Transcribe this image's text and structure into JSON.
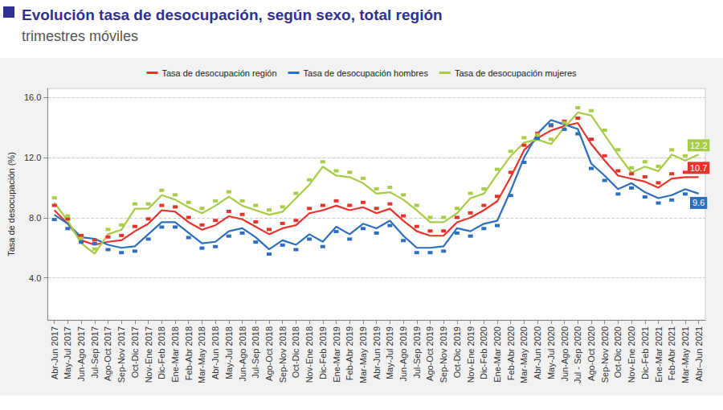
{
  "chart_data": {
    "type": "line",
    "title": "Evolución tasa de desocupación, según sexo, total región",
    "subtitle": "trimestres móviles",
    "y_label": "Tasa de desocupación (%)",
    "categories": [
      "Abr-Jun 2017",
      "May-Jul 2017",
      "Jun-Ago 2017",
      "Jul-Sep 2017",
      "Ago-Oct 2017",
      "Sep-Nov 2017",
      "Oct-Dic 2017",
      "Nov-Ene 2017",
      "Dic-Feb 2018",
      "Ene-Mar 2018",
      "Feb-Abr 2018",
      "Mar-May 2018",
      "Abr-Jun 2018",
      "May-Jul 2018",
      "Jun-Ago 2018",
      "Jul-Sep 2018",
      "Ago-Oct 2018",
      "Sep-Nov 2018",
      "Oct-Dic 2018",
      "Nov-Ene 2018",
      "Dic-Feb 2019",
      "Ene-Mar 2019",
      "Feb-Abr 2019",
      "Mar-May 2019",
      "Abr-Jun 2019",
      "May-Jul 2019",
      "Jun-Ago 2019",
      "Jul-Sep 2019",
      "Ago-Oct 2019",
      "Sep-Nov 2019",
      "Oct-Dic 2019",
      "Nov-Ene 2019",
      "Dic-Feb 2020",
      "Ene-Mar 2020",
      "Feb-Abr 2020",
      "Mar-May 2020",
      "Abr-Jun 2020",
      "May-Jul 2020",
      "Jun-Ago 2020",
      "Jul - Sep 2020",
      "Ago-Oct 2020",
      "Sep-Nov 2020",
      "Oct-Dic 2020",
      "Nov-Ene 2020",
      "Dic-Feb 2021",
      "Ene-Mar 2021",
      "Feb-Abr 2021",
      "Mar-May 2021",
      "Abr–Jun 2021"
    ],
    "series": [
      {
        "name": "Tasa de desocupación región",
        "color": "#e8332a",
        "values": [
          8.5,
          7.6,
          6.5,
          6.2,
          6.4,
          6.5,
          7.1,
          7.6,
          8.5,
          8.4,
          7.7,
          7.2,
          7.5,
          8.1,
          7.9,
          7.4,
          6.9,
          7.3,
          7.5,
          8.3,
          8.5,
          8.8,
          8.5,
          8.7,
          8.3,
          8.6,
          7.8,
          7.1,
          6.8,
          6.8,
          7.7,
          8.0,
          8.5,
          9.1,
          10.7,
          12.5,
          13.3,
          13.8,
          14.1,
          14.3,
          12.9,
          11.8,
          10.8,
          10.6,
          10.4,
          10.0,
          10.6,
          10.7,
          10.7
        ],
        "value_labels": [
          null,
          null,
          null,
          null,
          null,
          null,
          null,
          null,
          null,
          null,
          null,
          null,
          null,
          null,
          null,
          null,
          null,
          null,
          null,
          null,
          null,
          null,
          null,
          null,
          null,
          null,
          null,
          null,
          null,
          null,
          null,
          null,
          null,
          null,
          null,
          null,
          null,
          null,
          null,
          null,
          null,
          null,
          null,
          null,
          null,
          null,
          null,
          null,
          "10.7"
        ]
      },
      {
        "name": "Tasa de desocupación hombres",
        "color": "#2c6fbf",
        "values": [
          8.2,
          7.6,
          6.7,
          6.6,
          6.2,
          6.0,
          6.1,
          6.9,
          7.7,
          7.7,
          7.0,
          6.3,
          6.4,
          7.1,
          7.3,
          6.7,
          5.9,
          6.5,
          6.2,
          6.9,
          6.4,
          7.4,
          6.9,
          7.6,
          7.3,
          7.8,
          6.8,
          6.0,
          6.0,
          6.1,
          7.3,
          7.1,
          7.6,
          7.8,
          9.8,
          12.0,
          13.6,
          14.5,
          14.2,
          13.9,
          11.6,
          10.8,
          9.9,
          10.3,
          9.7,
          9.3,
          9.5,
          9.9,
          9.6
        ],
        "value_labels": [
          null,
          null,
          null,
          null,
          null,
          null,
          null,
          null,
          null,
          null,
          null,
          null,
          null,
          null,
          null,
          null,
          null,
          null,
          null,
          null,
          null,
          null,
          null,
          null,
          null,
          null,
          null,
          null,
          null,
          null,
          null,
          null,
          null,
          null,
          null,
          null,
          null,
          null,
          null,
          null,
          null,
          null,
          null,
          null,
          null,
          null,
          null,
          null,
          "9.6"
        ]
      },
      {
        "name": "Tasa de desocupación mujeres",
        "color": "#a6cd45",
        "values": [
          9.0,
          7.8,
          6.3,
          5.6,
          6.9,
          7.2,
          8.6,
          8.6,
          9.5,
          9.2,
          8.7,
          8.3,
          8.8,
          9.4,
          8.8,
          8.5,
          8.2,
          8.4,
          9.3,
          10.2,
          11.4,
          10.8,
          10.7,
          10.3,
          9.6,
          9.7,
          9.2,
          8.5,
          7.7,
          7.7,
          8.3,
          9.3,
          9.6,
          10.9,
          12.1,
          13.0,
          13.2,
          12.9,
          14.0,
          15.0,
          14.8,
          13.5,
          12.2,
          11.0,
          11.4,
          11.1,
          12.2,
          11.8,
          12.2
        ],
        "value_labels": [
          null,
          null,
          null,
          null,
          null,
          null,
          null,
          null,
          null,
          null,
          null,
          null,
          null,
          null,
          null,
          null,
          null,
          null,
          null,
          null,
          null,
          null,
          null,
          null,
          null,
          null,
          null,
          null,
          null,
          null,
          null,
          null,
          null,
          null,
          null,
          null,
          null,
          null,
          null,
          null,
          null,
          null,
          null,
          null,
          null,
          null,
          null,
          null,
          "12.2"
        ]
      }
    ],
    "ylim": [
      1.2,
      16.6
    ],
    "yticks": [
      {
        "value": 4,
        "label": "4.0"
      },
      {
        "value": 8,
        "label": "8.0"
      },
      {
        "value": 12,
        "label": "12.0"
      },
      {
        "value": 16,
        "label": "16.0"
      }
    ],
    "grid": true,
    "legend": "top"
  }
}
